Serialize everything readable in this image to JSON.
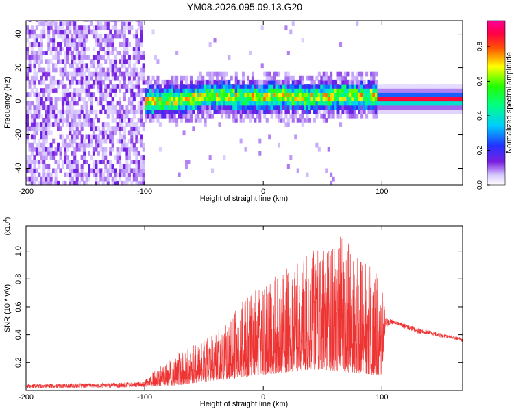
{
  "title": "YM08.2026.095.09.13.G20",
  "colors": {
    "snr_line": "#ee3333",
    "axis": "#000000"
  },
  "chart_data": [
    {
      "type": "heatmap",
      "name": "spectrogram",
      "xlabel": "Height of straight line (km)",
      "ylabel": "Frequency (Hz)",
      "xlim": [
        -200,
        168
      ],
      "ylim": [
        -50,
        48
      ],
      "xticks": [
        -200,
        -100,
        0,
        100
      ],
      "xtick_labels": [
        "-200",
        "-100",
        "0",
        "100"
      ],
      "yticks": [
        -40,
        -20,
        0,
        20,
        40
      ],
      "ytick_labels": [
        "-40",
        "-20",
        "0",
        "20",
        "40"
      ],
      "colorbar": {
        "label": "Normalized spectral amplitude",
        "range": [
          0,
          0.95
        ],
        "ticks": [
          0.0,
          0.2,
          0.4,
          0.6,
          0.8
        ],
        "tick_labels": [
          "0.0",
          "0.2",
          "0.4",
          "0.6",
          "0.8"
        ],
        "colormap": "rainbow (purple-blue-cyan-green-yellow-red-magenta)"
      },
      "regions": [
        {
          "x_range": [
            -200,
            -100
          ],
          "description": "broadband noise, amplitude 0.0-0.15 across all frequencies"
        },
        {
          "x_range": [
            -100,
            95
          ],
          "description": "signal band centered near 0 Hz, width about +/-10 Hz, peak amplitude ~0.8"
        },
        {
          "x_range": [
            95,
            168
          ],
          "description": "narrow strong band at ~1 Hz, amplitude ~0.9"
        }
      ]
    },
    {
      "type": "line",
      "name": "snr",
      "xlabel": "Height of straight line (km)",
      "ylabel": "SNR (10 * v/v)",
      "y_scale_label": "(x10",
      "y_scale_exponent": "4",
      "xlim": [
        -200,
        168
      ],
      "ylim": [
        0,
        11800
      ],
      "xticks": [
        -200,
        -100,
        0,
        100
      ],
      "xtick_labels": [
        "-200",
        "-100",
        "0",
        "100"
      ],
      "yticks": [
        2000,
        4000,
        6000,
        8000,
        10000
      ],
      "ytick_labels": [
        "0.2",
        "0.4",
        "0.6",
        "0.8",
        "1.0"
      ],
      "series": [
        {
          "name": "SNR envelope",
          "x": [
            -200,
            -120,
            -100,
            -90,
            -80,
            -70,
            -60,
            -50,
            -40,
            -30,
            -20,
            -10,
            0,
            10,
            20,
            30,
            40,
            50,
            60,
            70,
            80,
            90,
            100,
            103,
            110,
            120,
            130,
            140,
            150,
            160,
            168
          ],
          "low": [
            150,
            200,
            250,
            300,
            350,
            400,
            500,
            600,
            700,
            800,
            900,
            1000,
            1100,
            1200,
            1300,
            1400,
            1500,
            1500,
            1400,
            1300,
            1200,
            1100,
            1100,
            4500,
            4800,
            4400,
            4100,
            4000,
            3800,
            3700,
            3500
          ],
          "high": [
            450,
            550,
            700,
            1600,
            2100,
            2800,
            3200,
            3700,
            4200,
            5000,
            6200,
            7000,
            7600,
            8200,
            8800,
            9400,
            10200,
            11000,
            11300,
            10800,
            9900,
            9000,
            8200,
            5300,
            5000,
            4800,
            4500,
            4300,
            4100,
            3900,
            3800
          ]
        }
      ]
    }
  ]
}
